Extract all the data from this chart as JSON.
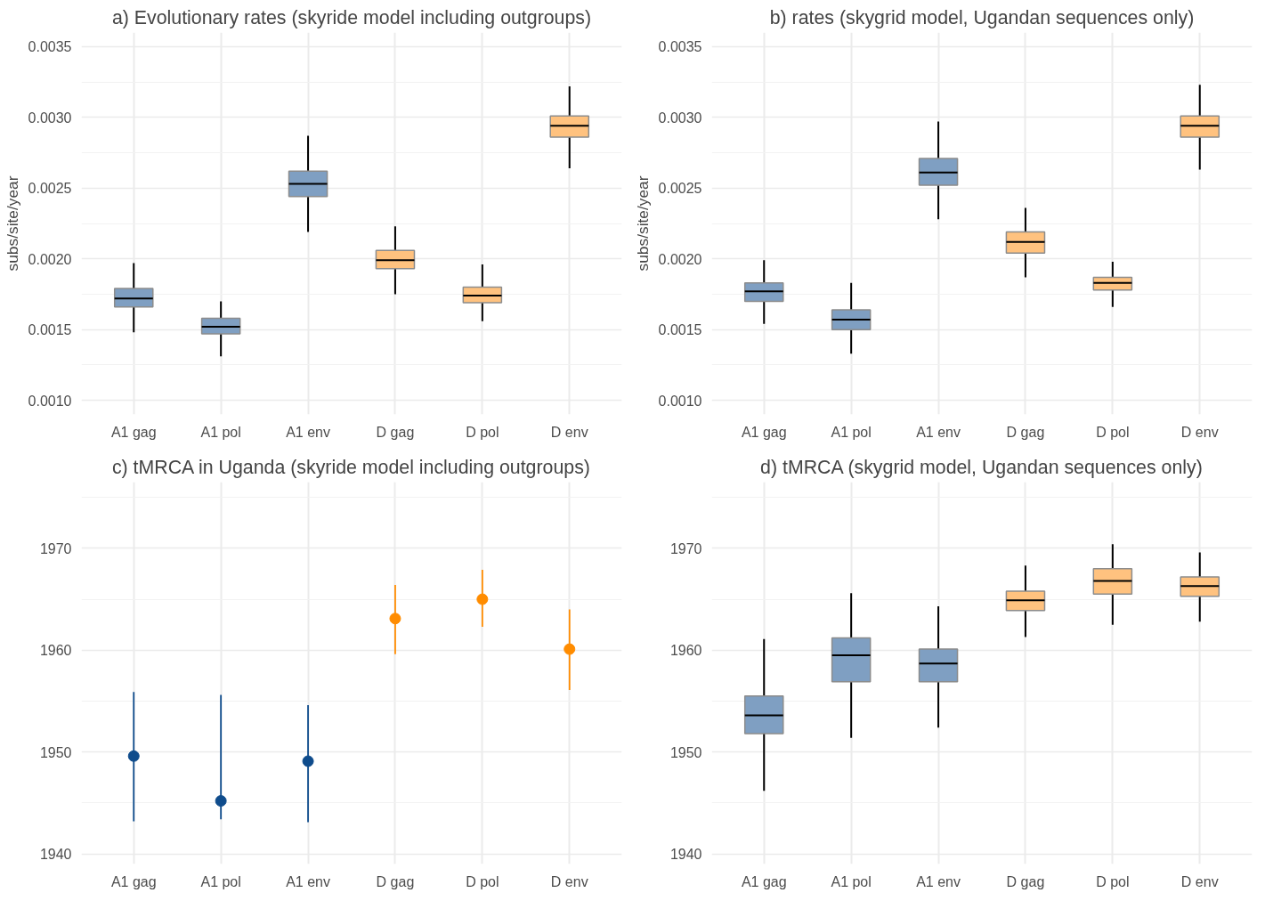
{
  "chart_data": [
    {
      "type": "box",
      "title": "a) Evolutionary rates (skyride model including outgroups)",
      "ylabel": "subs/site/year",
      "categories": [
        "A1 gag",
        "A1 pol",
        "A1 env",
        "D gag",
        "D pol",
        "D env"
      ],
      "colors": [
        "#7f9fc2",
        "#7f9fc2",
        "#7f9fc2",
        "#ffc27f",
        "#ffc27f",
        "#ffc27f"
      ],
      "boxes": [
        {
          "low": 0.00148,
          "q1": 0.00166,
          "median": 0.00172,
          "q3": 0.00179,
          "high": 0.00197
        },
        {
          "low": 0.00131,
          "q1": 0.00147,
          "median": 0.00152,
          "q3": 0.00158,
          "high": 0.0017
        },
        {
          "low": 0.00219,
          "q1": 0.00244,
          "median": 0.00253,
          "q3": 0.00262,
          "high": 0.00287
        },
        {
          "low": 0.00175,
          "q1": 0.00193,
          "median": 0.00199,
          "q3": 0.00206,
          "high": 0.00223
        },
        {
          "low": 0.00156,
          "q1": 0.00169,
          "median": 0.00174,
          "q3": 0.0018,
          "high": 0.00196
        },
        {
          "low": 0.00264,
          "q1": 0.00286,
          "median": 0.00294,
          "q3": 0.00301,
          "high": 0.00322
        }
      ],
      "ylim": [
        0.0009,
        0.0036
      ],
      "yticks": [
        {
          "value": 0.001,
          "label": "0.0010"
        },
        {
          "value": 0.0015,
          "label": "0.0015"
        },
        {
          "value": 0.002,
          "label": "0.0020"
        },
        {
          "value": 0.0025,
          "label": "0.0025"
        },
        {
          "value": 0.003,
          "label": "0.0030"
        },
        {
          "value": 0.0035,
          "label": "0.0035"
        }
      ],
      "grid": true
    },
    {
      "type": "box",
      "title": "b) rates (skygrid model, Ugandan sequences only)",
      "ylabel": "subs/site/year",
      "categories": [
        "A1 gag",
        "A1 pol",
        "A1 env",
        "D gag",
        "D pol",
        "D env"
      ],
      "colors": [
        "#7f9fc2",
        "#7f9fc2",
        "#7f9fc2",
        "#ffc27f",
        "#ffc27f",
        "#ffc27f"
      ],
      "boxes": [
        {
          "low": 0.00154,
          "q1": 0.0017,
          "median": 0.00177,
          "q3": 0.00183,
          "high": 0.00199
        },
        {
          "low": 0.00133,
          "q1": 0.0015,
          "median": 0.00157,
          "q3": 0.00164,
          "high": 0.00183
        },
        {
          "low": 0.00228,
          "q1": 0.00252,
          "median": 0.00261,
          "q3": 0.00271,
          "high": 0.00297
        },
        {
          "low": 0.00187,
          "q1": 0.00204,
          "median": 0.00212,
          "q3": 0.00219,
          "high": 0.00236
        },
        {
          "low": 0.00166,
          "q1": 0.00178,
          "median": 0.00183,
          "q3": 0.00187,
          "high": 0.00198
        },
        {
          "low": 0.00263,
          "q1": 0.00286,
          "median": 0.00294,
          "q3": 0.00301,
          "high": 0.00323
        }
      ],
      "ylim": [
        0.0009,
        0.0036
      ],
      "yticks": [
        {
          "value": 0.001,
          "label": "0.0010"
        },
        {
          "value": 0.0015,
          "label": "0.0015"
        },
        {
          "value": 0.002,
          "label": "0.0020"
        },
        {
          "value": 0.0025,
          "label": "0.0025"
        },
        {
          "value": 0.003,
          "label": "0.0030"
        },
        {
          "value": 0.0035,
          "label": "0.0035"
        }
      ],
      "grid": true
    },
    {
      "type": "scatter",
      "title": "c) tMRCA in Uganda (skyride model including outgroups)",
      "categories": [
        "A1 gag",
        "A1 pol",
        "A1 env",
        "D gag",
        "D pol",
        "D env"
      ],
      "values": [
        1949.6,
        1945.2,
        1949.1,
        1963.1,
        1965.0,
        1960.1
      ],
      "errors": [
        [
          1943.2,
          1955.9
        ],
        [
          1943.4,
          1955.6
        ],
        [
          1943.1,
          1954.6
        ],
        [
          1959.6,
          1966.4
        ],
        [
          1962.3,
          1967.9
        ],
        [
          1956.1,
          1964.0
        ]
      ],
      "colors": [
        "#0f4c8c",
        "#0f4c8c",
        "#0f4c8c",
        "#ff8c00",
        "#ff8c00",
        "#ff8c00"
      ],
      "marker": "circle",
      "ylim": [
        1939,
        1976.5
      ],
      "yticks": [
        1940,
        1950,
        1960,
        1970
      ],
      "grid": true
    },
    {
      "type": "box",
      "title": "d) tMRCA (skygrid model, Ugandan sequences only)",
      "categories": [
        "A1 gag",
        "A1 pol",
        "A1 env",
        "D gag",
        "D pol",
        "D env"
      ],
      "colors": [
        "#7f9fc2",
        "#7f9fc2",
        "#7f9fc2",
        "#ffc27f",
        "#ffc27f",
        "#ffc27f"
      ],
      "boxes": [
        {
          "low": 1946.2,
          "q1": 1951.8,
          "median": 1953.6,
          "q3": 1955.5,
          "high": 1961.1
        },
        {
          "low": 1951.4,
          "q1": 1956.9,
          "median": 1959.5,
          "q3": 1961.2,
          "high": 1965.6
        },
        {
          "low": 1952.4,
          "q1": 1956.9,
          "median": 1958.7,
          "q3": 1960.1,
          "high": 1964.3
        },
        {
          "low": 1961.3,
          "q1": 1963.9,
          "median": 1964.9,
          "q3": 1965.8,
          "high": 1968.3
        },
        {
          "low": 1962.5,
          "q1": 1965.5,
          "median": 1966.8,
          "q3": 1968.0,
          "high": 1970.4
        },
        {
          "low": 1962.8,
          "q1": 1965.3,
          "median": 1966.3,
          "q3": 1967.2,
          "high": 1969.6
        }
      ],
      "ylim": [
        1939,
        1976.5
      ],
      "yticks": [
        1940,
        1950,
        1960,
        1970
      ],
      "grid": true
    }
  ]
}
